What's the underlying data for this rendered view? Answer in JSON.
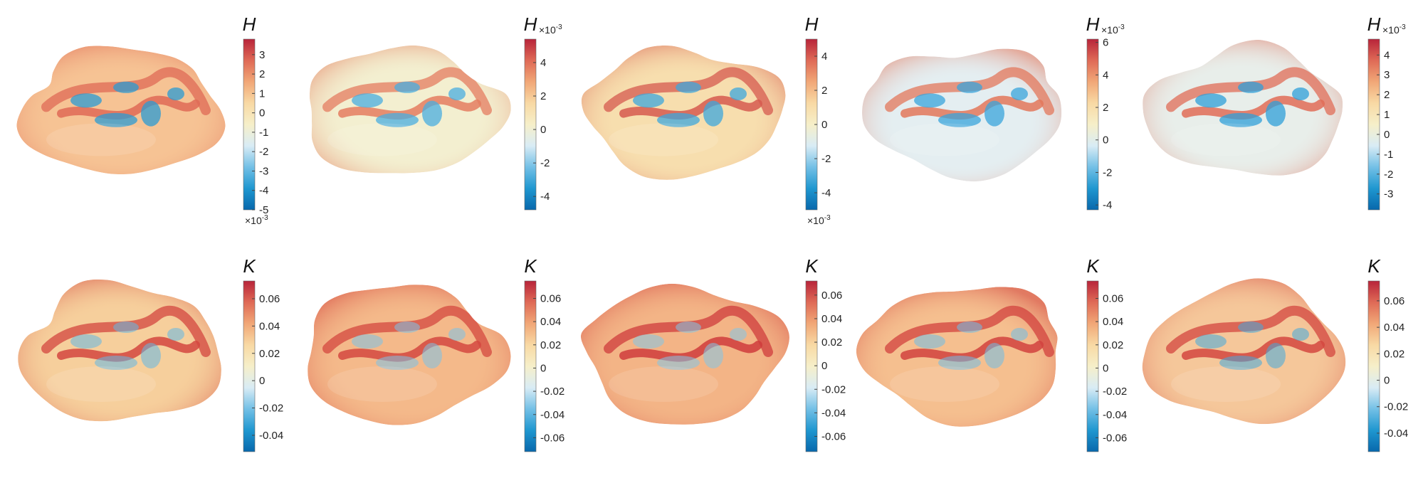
{
  "colormap": {
    "stops": [
      "#0868ac",
      "#1f97d0",
      "#73c0e6",
      "#d9ecf5",
      "#f6efc9",
      "#f8d9a4",
      "#f1a777",
      "#df6a56",
      "#b8243a"
    ]
  },
  "panels": [
    {
      "row": 0,
      "col": 0,
      "label": "H",
      "exponent": "×10",
      "exponent_power": "-3",
      "exponent_position": "bottom",
      "range": [
        -5,
        3.8
      ],
      "ticks": [
        3,
        2,
        1,
        0,
        -1,
        -2,
        -3,
        -4,
        -5
      ],
      "surface": {
        "base": "#f6c394",
        "ridge": "#df6a56",
        "pit": "#2b9bd3"
      }
    },
    {
      "row": 0,
      "col": 1,
      "label": "H",
      "exponent": "×10",
      "exponent_power": "-3",
      "exponent_position": "top",
      "range": [
        -4.8,
        5.4
      ],
      "ticks": [
        4,
        2,
        0,
        -2,
        -4
      ],
      "surface": {
        "base": "#f3efd0",
        "ridge": "#e47c60",
        "pit": "#4aaee0"
      }
    },
    {
      "row": 0,
      "col": 2,
      "label": "H",
      "exponent": "×10",
      "exponent_power": "-3",
      "exponent_position": "bottom",
      "range": [
        -5,
        5
      ],
      "ticks": [
        4,
        2,
        0,
        -2,
        -4
      ],
      "surface": {
        "base": "#f7deae",
        "ridge": "#d65a4f",
        "pit": "#3ea7dc"
      }
    },
    {
      "row": 0,
      "col": 3,
      "label": "H",
      "exponent": "×10",
      "exponent_power": "-3",
      "exponent_position": "top",
      "range": [
        -4.3,
        6.2
      ],
      "ticks": [
        6,
        4,
        2,
        0,
        -2,
        -4
      ],
      "surface": {
        "base": "#e4eef1",
        "ridge": "#e3775b",
        "pit": "#3aa4db"
      }
    },
    {
      "row": 0,
      "col": 4,
      "label": "H",
      "exponent": "×10",
      "exponent_power": "-3",
      "exponent_position": "top",
      "range": [
        -3.8,
        4.8
      ],
      "ticks": [
        4,
        3,
        2,
        1,
        0,
        -1,
        -2,
        -3
      ],
      "surface": {
        "base": "#e8eeea",
        "ridge": "#e06c57",
        "pit": "#2f9fd8"
      }
    },
    {
      "row": 1,
      "col": 0,
      "label": "K",
      "exponent": "",
      "exponent_power": "",
      "exponent_position": "none",
      "range": [
        -0.052,
        0.073
      ],
      "ticks": [
        "0.06",
        "0.04",
        "0.02",
        "0",
        "-0.02",
        "-0.04"
      ],
      "surface": {
        "base": "#f6cf9c",
        "ridge": "#d3463f",
        "pit": "#62b8e6"
      }
    },
    {
      "row": 1,
      "col": 1,
      "label": "K",
      "exponent": "",
      "exponent_power": "",
      "exponent_position": "none",
      "range": [
        -0.072,
        0.075
      ],
      "ticks": [
        "0.06",
        "0.04",
        "0.02",
        "0",
        "-0.02",
        "-0.04",
        "-0.06"
      ],
      "surface": {
        "base": "#f4b98a",
        "ridge": "#d4483f",
        "pit": "#7cc3e8"
      }
    },
    {
      "row": 1,
      "col": 2,
      "label": "K",
      "exponent": "",
      "exponent_power": "",
      "exponent_position": "none",
      "range": [
        -0.073,
        0.072
      ],
      "ticks": [
        "0.06",
        "0.04",
        "0.02",
        "0",
        "-0.02",
        "-0.04",
        "-0.06"
      ],
      "surface": {
        "base": "#f3b486",
        "ridge": "#cf3c3c",
        "pit": "#82c6e8"
      }
    },
    {
      "row": 1,
      "col": 3,
      "label": "K",
      "exponent": "",
      "exponent_power": "",
      "exponent_position": "none",
      "range": [
        -0.072,
        0.075
      ],
      "ticks": [
        "0.06",
        "0.04",
        "0.02",
        "0",
        "-0.02",
        "-0.04",
        "-0.06"
      ],
      "surface": {
        "base": "#f5bf8f",
        "ridge": "#d1423e",
        "pit": "#6dbde7"
      }
    },
    {
      "row": 1,
      "col": 4,
      "label": "K",
      "exponent": "",
      "exponent_power": "",
      "exponent_position": "none",
      "range": [
        -0.054,
        0.075
      ],
      "ticks": [
        "0.06",
        "0.04",
        "0.02",
        "0",
        "-0.02",
        "-0.04"
      ],
      "surface": {
        "base": "#f5c79a",
        "ridge": "#d3463f",
        "pit": "#41a9de"
      }
    }
  ]
}
